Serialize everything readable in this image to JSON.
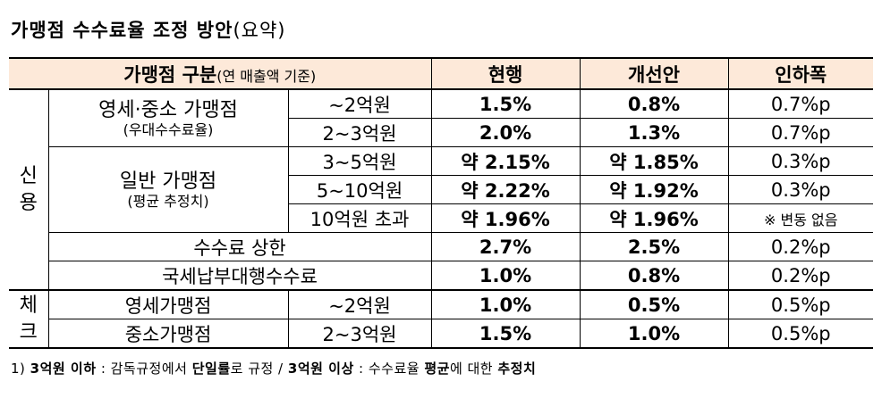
{
  "title": {
    "main": "가맹점 수수료율 조정 방안",
    "paren": "(요약)"
  },
  "header": {
    "category": "가맹점 구분",
    "category_sub": "(연 매출액 기준)",
    "current": "현행",
    "proposal": "개선안",
    "reduction": "인하폭"
  },
  "credit": {
    "label": "신\n용",
    "label_top": "신",
    "label_bottom": "용",
    "small_mid": {
      "name": "영세·중소 가맹점",
      "sub": "(우대수수료율)"
    },
    "general": {
      "name": "일반 가맹점",
      "sub": "(평균 추정치)"
    },
    "rows": [
      {
        "range": "~2억원",
        "current": "1.5%",
        "proposal": "0.8%",
        "reduction": "0.7%p"
      },
      {
        "range": "2~3억원",
        "current": "2.0%",
        "proposal": "1.3%",
        "reduction": "0.7%p"
      },
      {
        "range": "3~5억원",
        "current": "약 2.15%",
        "proposal": "약 1.85%",
        "reduction": "0.3%p"
      },
      {
        "range": "5~10억원",
        "current": "약 2.22%",
        "proposal": "약 1.92%",
        "reduction": "0.3%p"
      },
      {
        "range": "10억원 초과",
        "current": "약 1.96%",
        "proposal": "약 1.96%",
        "reduction": "※ 변동 없음"
      }
    ],
    "cap": {
      "name": "수수료 상한",
      "current": "2.7%",
      "proposal": "2.5%",
      "reduction": "0.2%p"
    },
    "tax": {
      "name": "국세납부대행수수료",
      "current": "1.0%",
      "proposal": "0.8%",
      "reduction": "0.2%p"
    }
  },
  "check": {
    "label_top": "체",
    "label_bottom": "크",
    "rows": [
      {
        "name": "영세가맹점",
        "range": "~2억원",
        "current": "1.0%",
        "proposal": "0.5%",
        "reduction": "0.5%p"
      },
      {
        "name": "중소가맹점",
        "range": "2~3억원",
        "current": "1.5%",
        "proposal": "1.0%",
        "reduction": "0.5%p"
      }
    ]
  },
  "footnote": {
    "t1": "1) ",
    "t2": "3억원 이하",
    "t3": " : 감독규정에서 ",
    "t4": "단일률",
    "t5": "로 규정 / ",
    "t6": "3억원 이상",
    "t7": " : 수수료율 ",
    "t8": "평균",
    "t9": "에 대한 ",
    "t10": "추정치"
  }
}
